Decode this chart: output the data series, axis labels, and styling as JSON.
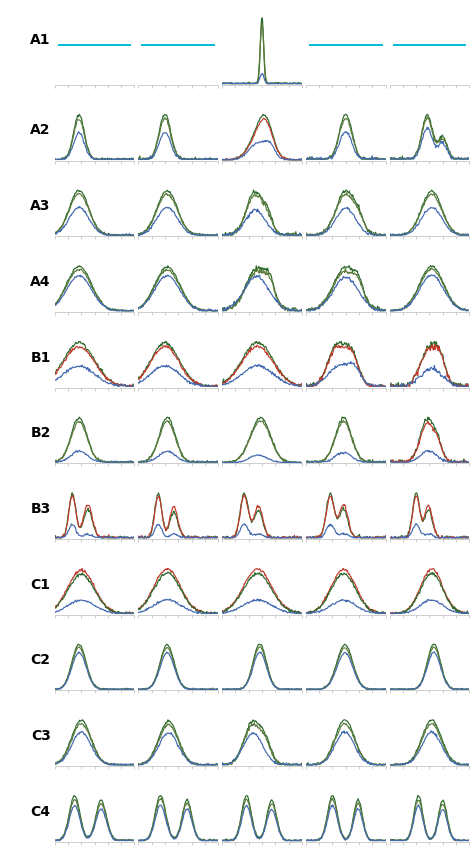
{
  "row_labels": [
    "A1",
    "A2",
    "A3",
    "A4",
    "B1",
    "B2",
    "B3",
    "C1",
    "C2",
    "C3",
    "C4"
  ],
  "n_rows": 11,
  "n_cols": 5,
  "colors": {
    "dark_green": "#2d6a2d",
    "olive_green": "#5a7a3a",
    "red": "#c0392b",
    "blue": "#4169b0",
    "cyan": "#00bcd4"
  },
  "background": "#ffffff"
}
